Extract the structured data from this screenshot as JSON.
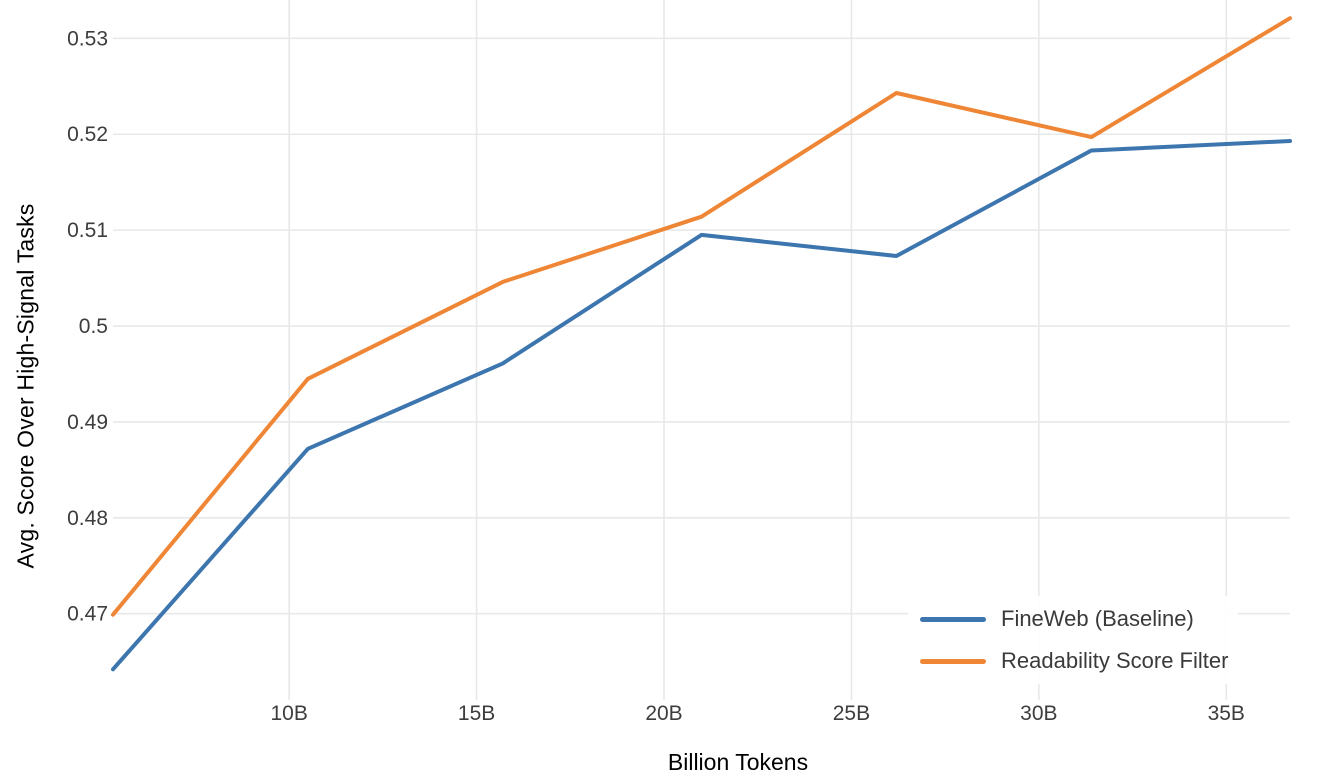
{
  "chart_data": {
    "type": "line",
    "title": "",
    "xlabel": "Billion Tokens",
    "ylabel": "Avg. Score Over High-Signal Tasks",
    "x": [
      5.3,
      10.5,
      15.7,
      21.0,
      26.2,
      31.4,
      36.7
    ],
    "series": [
      {
        "name": "FineWeb (Baseline)",
        "color": "#3d76af",
        "values": [
          0.4642,
          0.4872,
          0.4961,
          0.5095,
          0.5073,
          0.5183,
          0.5193
        ]
      },
      {
        "name": "Readability Score Filter",
        "color": "#ef8636",
        "values": [
          0.4699,
          0.4945,
          0.5046,
          0.5114,
          0.5243,
          0.5197,
          0.5321
        ]
      }
    ],
    "xlim": [
      5.3,
      36.7
    ],
    "ylim": [
      0.461,
      0.534
    ],
    "x_ticks": [
      {
        "value": 10,
        "label": "10B"
      },
      {
        "value": 15,
        "label": "15B"
      },
      {
        "value": 20,
        "label": "20B"
      },
      {
        "value": 25,
        "label": "25B"
      },
      {
        "value": 30,
        "label": "30B"
      },
      {
        "value": 35,
        "label": "35B"
      }
    ],
    "y_ticks": [
      {
        "value": 0.47,
        "label": "0.47"
      },
      {
        "value": 0.48,
        "label": "0.48"
      },
      {
        "value": 0.49,
        "label": "0.49"
      },
      {
        "value": 0.5,
        "label": "0.5"
      },
      {
        "value": 0.51,
        "label": "0.51"
      },
      {
        "value": 0.52,
        "label": "0.52"
      },
      {
        "value": 0.53,
        "label": "0.53"
      }
    ],
    "grid": true,
    "legend_position": "lower right",
    "colors": {
      "background": "#ffffff",
      "grid": "#e8e8e8",
      "tick_label": "#3d3d3d",
      "axis_title": "#000000",
      "legend_text": "#3a3a3a"
    }
  }
}
